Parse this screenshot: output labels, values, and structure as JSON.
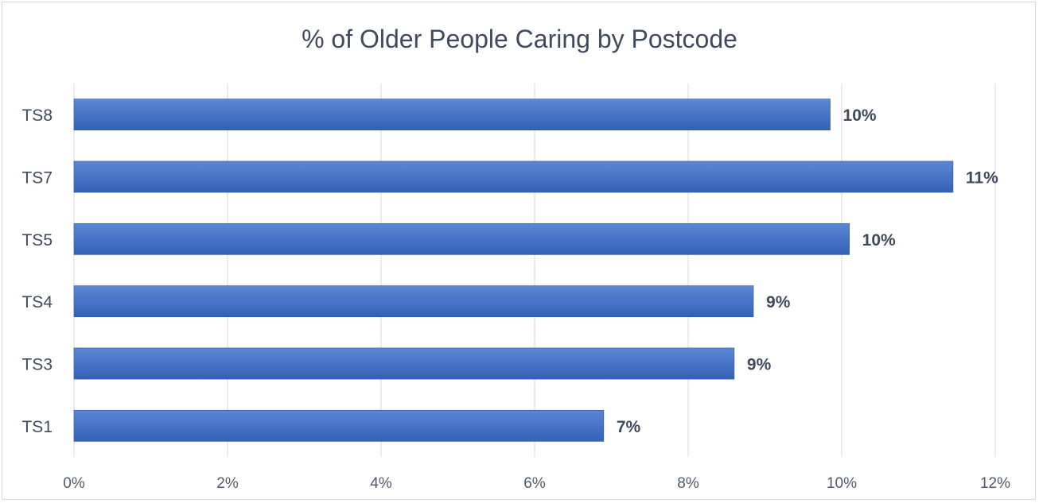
{
  "chart_data": {
    "type": "bar",
    "orientation": "horizontal",
    "title": "% of Older People Caring by Postcode",
    "xlabel": "",
    "ylabel": "",
    "categories": [
      "TS8",
      "TS7",
      "TS5",
      "TS4",
      "TS3",
      "TS1"
    ],
    "values": [
      9.85,
      11.45,
      10.1,
      8.85,
      8.6,
      6.9
    ],
    "data_labels": [
      "10%",
      "11%",
      "10%",
      "9%",
      "9%",
      "7%"
    ],
    "xlim": [
      0,
      12
    ],
    "x_ticks": [
      0,
      2,
      4,
      6,
      8,
      10,
      12
    ],
    "x_tick_labels": [
      "0%",
      "2%",
      "4%",
      "6%",
      "8%",
      "10%",
      "12%"
    ],
    "grid": "vertical",
    "legend": "none",
    "bar_color": "#4472c4"
  }
}
